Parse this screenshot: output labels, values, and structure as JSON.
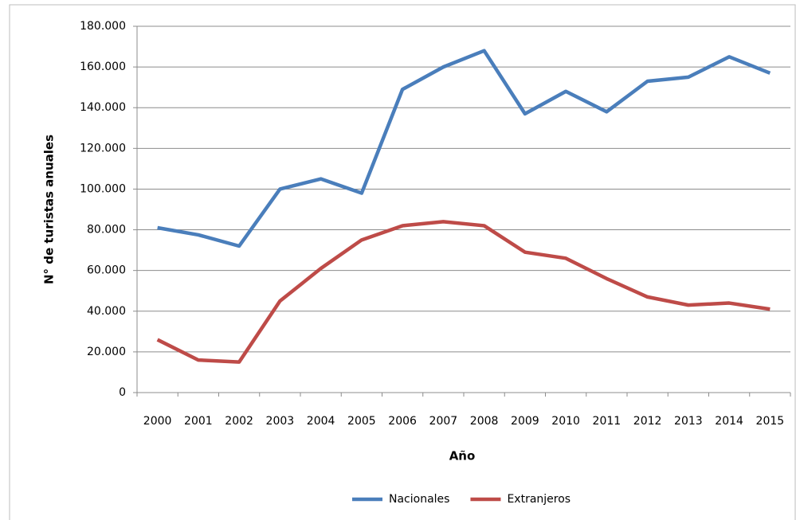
{
  "chart_data": {
    "type": "line",
    "x_label": "Año",
    "y_label": "N° de turistas anuales",
    "categories": [
      "2000",
      "2001",
      "2002",
      "2003",
      "2004",
      "2005",
      "2006",
      "2007",
      "2008",
      "2009",
      "2010",
      "2011",
      "2012",
      "2013",
      "2014",
      "2015"
    ],
    "series": [
      {
        "name": "Nacionales",
        "color": "#4a7ebb",
        "values": [
          81000,
          77500,
          72000,
          100000,
          105000,
          98000,
          149000,
          160000,
          168000,
          137000,
          148000,
          138000,
          153000,
          155000,
          165000,
          157000
        ]
      },
      {
        "name": "Extranjeros",
        "color": "#be4b48",
        "values": [
          26000,
          16000,
          15000,
          45000,
          61000,
          75000,
          82000,
          84000,
          82000,
          69000,
          66000,
          56000,
          47000,
          43000,
          44000,
          41000
        ]
      }
    ],
    "ylim": [
      0,
      180000
    ],
    "yticks": [
      0,
      {
        "value": 20000,
        "label": "20.000"
      },
      {
        "value": 40000,
        "label": "40.000"
      },
      {
        "value": 60000,
        "label": "60.000"
      },
      {
        "value": 80000,
        "label": "80.000"
      },
      {
        "value": 100000,
        "label": "100.000"
      },
      {
        "value": 120000,
        "label": "120.000"
      },
      {
        "value": 140000,
        "label": "140.000"
      },
      {
        "value": 160000,
        "label": "160.000"
      },
      {
        "value": 180000,
        "label": "180.000"
      }
    ],
    "grid": true,
    "legend": "bottom"
  }
}
